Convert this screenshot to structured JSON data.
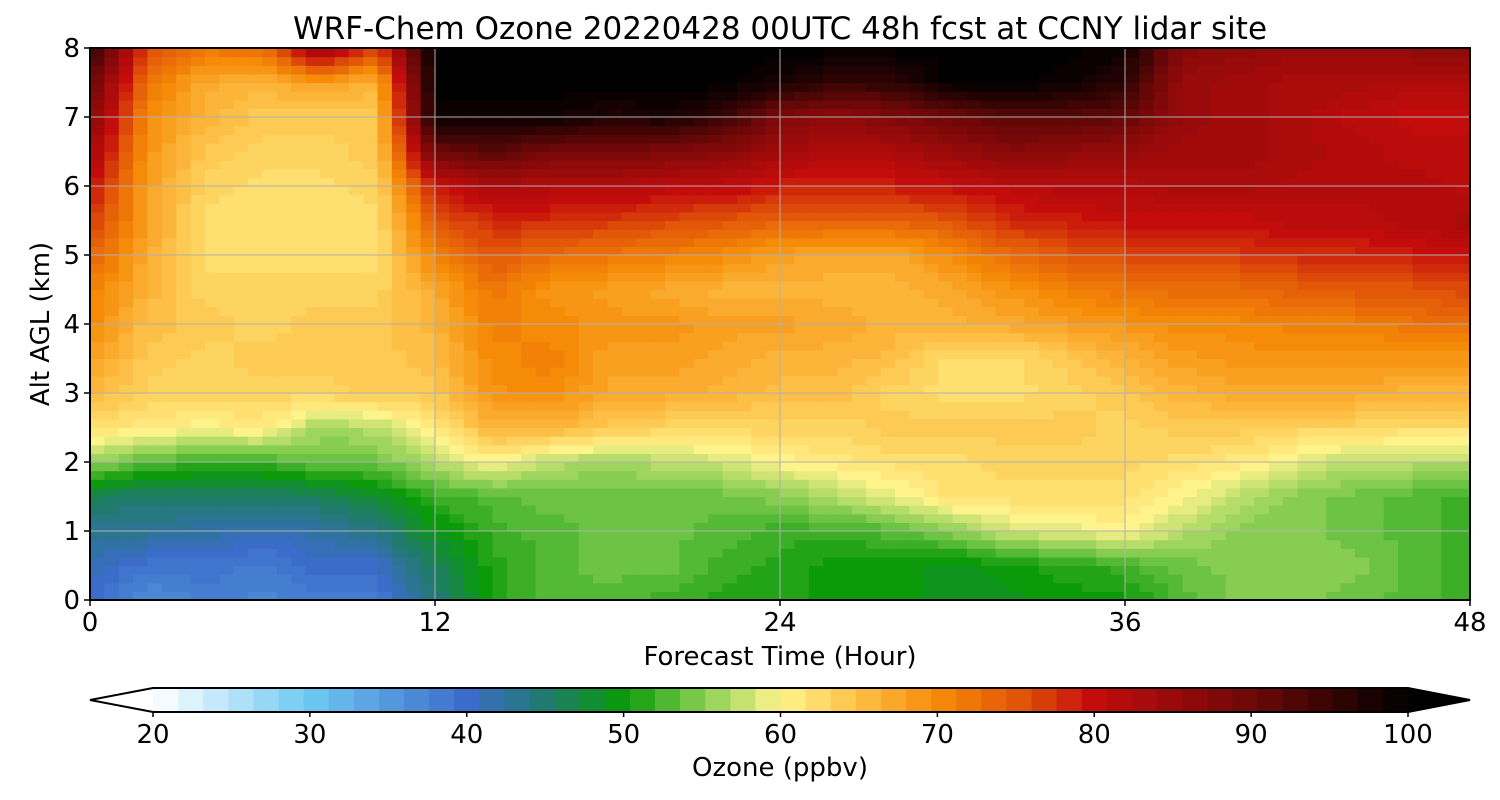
{
  "chart_data": {
    "type": "heatmap",
    "title": "WRF-Chem Ozone  20220428 00UTC 48h fcst at CCNY lidar site",
    "xlabel": "Forecast Time (Hour)",
    "ylabel": "Alt AGL (km)",
    "xlim": [
      0,
      48
    ],
    "ylim": [
      0,
      8
    ],
    "xticks": [
      0,
      12,
      24,
      36,
      48
    ],
    "yticks": [
      0,
      1,
      2,
      3,
      4,
      5,
      6,
      7,
      8
    ],
    "grid": true,
    "z_units": "ppbv",
    "x": [
      0,
      2,
      4,
      6,
      8,
      10,
      12,
      14,
      16,
      18,
      20,
      22,
      24,
      26,
      28,
      30,
      32,
      34,
      36,
      38,
      40,
      42,
      44,
      46,
      48
    ],
    "y": [
      0.0,
      0.5,
      1.0,
      1.5,
      2.0,
      2.5,
      3.0,
      3.5,
      4.0,
      4.5,
      5.0,
      5.5,
      6.0,
      6.5,
      7.0,
      7.5,
      8.0
    ],
    "z": [
      [
        40,
        36,
        38,
        37,
        38,
        38,
        44,
        51,
        53,
        53,
        52,
        51,
        51,
        50,
        50,
        49,
        49,
        50,
        50,
        53,
        55,
        55,
        54,
        53,
        52
      ],
      [
        41,
        39,
        39,
        38,
        40,
        40,
        46,
        51,
        53,
        54,
        54,
        52,
        51,
        50,
        50,
        49,
        50,
        51,
        52,
        54,
        55,
        55,
        55,
        53,
        52
      ],
      [
        43,
        43,
        42,
        41,
        42,
        44,
        49,
        52,
        53,
        54,
        54,
        53,
        52,
        52,
        53,
        55,
        58,
        59,
        60,
        57,
        55,
        55,
        54,
        53,
        52
      ],
      [
        46,
        45,
        45,
        45,
        46,
        48,
        52,
        53,
        54,
        54,
        54,
        54,
        55,
        57,
        59,
        62,
        62,
        62,
        62,
        60,
        57,
        55,
        54,
        53,
        52
      ],
      [
        56,
        53,
        52,
        52,
        54,
        54,
        57,
        60,
        57,
        56,
        57,
        58,
        60,
        61,
        62,
        62,
        63,
        63,
        63,
        62,
        61,
        59,
        57,
        57,
        57
      ],
      [
        62,
        61,
        60,
        61,
        56,
        57,
        61,
        66,
        66,
        64,
        63,
        63,
        63,
        63,
        64,
        64,
        64,
        64,
        63,
        64,
        64,
        63,
        63,
        62,
        62
      ],
      [
        66,
        63,
        63,
        63,
        63,
        64,
        64,
        69,
        70,
        67,
        67,
        66,
        65,
        65,
        63,
        62,
        62,
        63,
        64,
        66,
        67,
        67,
        67,
        66,
        66
      ],
      [
        68,
        64,
        63,
        64,
        64,
        64,
        65,
        70,
        71,
        68,
        68,
        67,
        66,
        66,
        65,
        62,
        62,
        64,
        66,
        68,
        69,
        69,
        69,
        69,
        69
      ],
      [
        70,
        65,
        64,
        63,
        64,
        64,
        66,
        71,
        70,
        69,
        69,
        68,
        68,
        67,
        66,
        66,
        67,
        68,
        69,
        70,
        70,
        71,
        71,
        72,
        73
      ],
      [
        71,
        66,
        63,
        63,
        63,
        63,
        67,
        72,
        69,
        68,
        67,
        66,
        66,
        66,
        66,
        67,
        69,
        71,
        72,
        73,
        73,
        74,
        75,
        75,
        76
      ],
      [
        74,
        67,
        62,
        62,
        62,
        62,
        71,
        75,
        73,
        72,
        71,
        70,
        68,
        67,
        67,
        70,
        73,
        75,
        76,
        76,
        77,
        78,
        78,
        79,
        80
      ],
      [
        77,
        68,
        62,
        62,
        62,
        62,
        75,
        78,
        78,
        77,
        76,
        75,
        74,
        74,
        74,
        75,
        78,
        79,
        80,
        80,
        80,
        81,
        81,
        82,
        83
      ],
      [
        80,
        68,
        63,
        62,
        62,
        63,
        79,
        83,
        82,
        82,
        81,
        81,
        79,
        78,
        79,
        80,
        81,
        82,
        82,
        83,
        83,
        82,
        82,
        82,
        81
      ],
      [
        84,
        69,
        64,
        63,
        63,
        64,
        90,
        92,
        89,
        89,
        88,
        87,
        84,
        82,
        83,
        85,
        87,
        86,
        85,
        84,
        84,
        83,
        82,
        81,
        81
      ],
      [
        87,
        70,
        66,
        64,
        64,
        64,
        99,
        99,
        99,
        97,
        98,
        95,
        88,
        86,
        88,
        90,
        92,
        92,
        91,
        85,
        84,
        83,
        81,
        80,
        80
      ],
      [
        91,
        72,
        67,
        66,
        68,
        66,
        100,
        100,
        100,
        100,
        100,
        100,
        98,
        95,
        96,
        100,
        100,
        99,
        96,
        85,
        84,
        83,
        83,
        82,
        82
      ],
      [
        96,
        76,
        72,
        73,
        85,
        76,
        100,
        100,
        100,
        100,
        100,
        100,
        100,
        100,
        100,
        100,
        100,
        100,
        99,
        87,
        86,
        85,
        85,
        86,
        87
      ]
    ],
    "colorbar": {
      "label": "Ozone  (ppbv)",
      "min": 20,
      "max": 100,
      "ticks": [
        20,
        30,
        40,
        50,
        60,
        70,
        80,
        90,
        100
      ],
      "extend": "both",
      "stops": [
        {
          "v": 20,
          "c": "#ffffff"
        },
        {
          "v": 30,
          "c": "#6ec8f2"
        },
        {
          "v": 40,
          "c": "#3b6cc9"
        },
        {
          "v": 45,
          "c": "#217a6e"
        },
        {
          "v": 50,
          "c": "#0a9a0a"
        },
        {
          "v": 55,
          "c": "#86cd52"
        },
        {
          "v": 60,
          "c": "#fff48c"
        },
        {
          "v": 65,
          "c": "#fdbf45"
        },
        {
          "v": 70,
          "c": "#f68b08"
        },
        {
          "v": 75,
          "c": "#e25808"
        },
        {
          "v": 80,
          "c": "#c40c0c"
        },
        {
          "v": 90,
          "c": "#6e0808"
        },
        {
          "v": 100,
          "c": "#000000"
        }
      ]
    }
  }
}
